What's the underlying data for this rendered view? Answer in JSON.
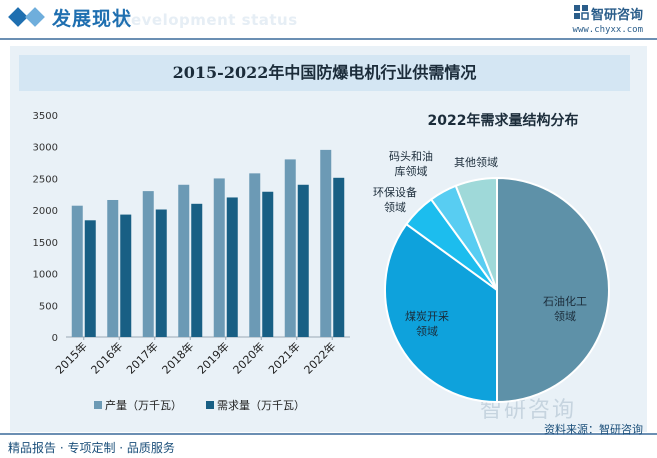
{
  "header": {
    "title": "发展现状",
    "subtitle": "Development status",
    "brand_name": "智研咨询",
    "brand_url": "www.chyxx.com",
    "brand_icon": "chyxx-logo-icon"
  },
  "chart_title": "2015-2022年中国防爆电机行业供需情况",
  "footer": {
    "left": "精品报告 · 专项定制 · 品质服务",
    "source": "资料来源：智研咨询",
    "watermark": "智研咨询"
  },
  "colors": {
    "supply": "#6c9ab5",
    "demand": "#185f84",
    "header_blue": "#1f6fb0",
    "pie": [
      "#5e91a8",
      "#0ea2dc",
      "#1cbdee",
      "#58cdf2",
      "#9fd9d9"
    ]
  },
  "chart_data": [
    {
      "type": "bar",
      "title": "",
      "categories": [
        "2015年",
        "2016年",
        "2017年",
        "2018年",
        "2019年",
        "2020年",
        "2021年",
        "2022年"
      ],
      "series": [
        {
          "name": "产量（万千瓦）",
          "values": [
            2070,
            2160,
            2300,
            2400,
            2500,
            2580,
            2800,
            2950
          ]
        },
        {
          "name": "需求量（万千瓦）",
          "values": [
            1840,
            1930,
            2010,
            2100,
            2200,
            2290,
            2400,
            2510
          ]
        }
      ],
      "yticks": [
        "0",
        "500",
        "1000",
        "1500",
        "2000",
        "2500",
        "3000",
        "3500"
      ],
      "ylim": [
        0,
        3500
      ],
      "grid": false,
      "legend": "bottom"
    },
    {
      "type": "pie",
      "title": "2022年需求量结构分布",
      "labels": [
        "石油化工领域",
        "煤炭开采领域",
        "环保设备领域",
        "码头和油库领域",
        "其他领域"
      ],
      "values": [
        50,
        35,
        5,
        4,
        6
      ],
      "legend": "none"
    }
  ]
}
